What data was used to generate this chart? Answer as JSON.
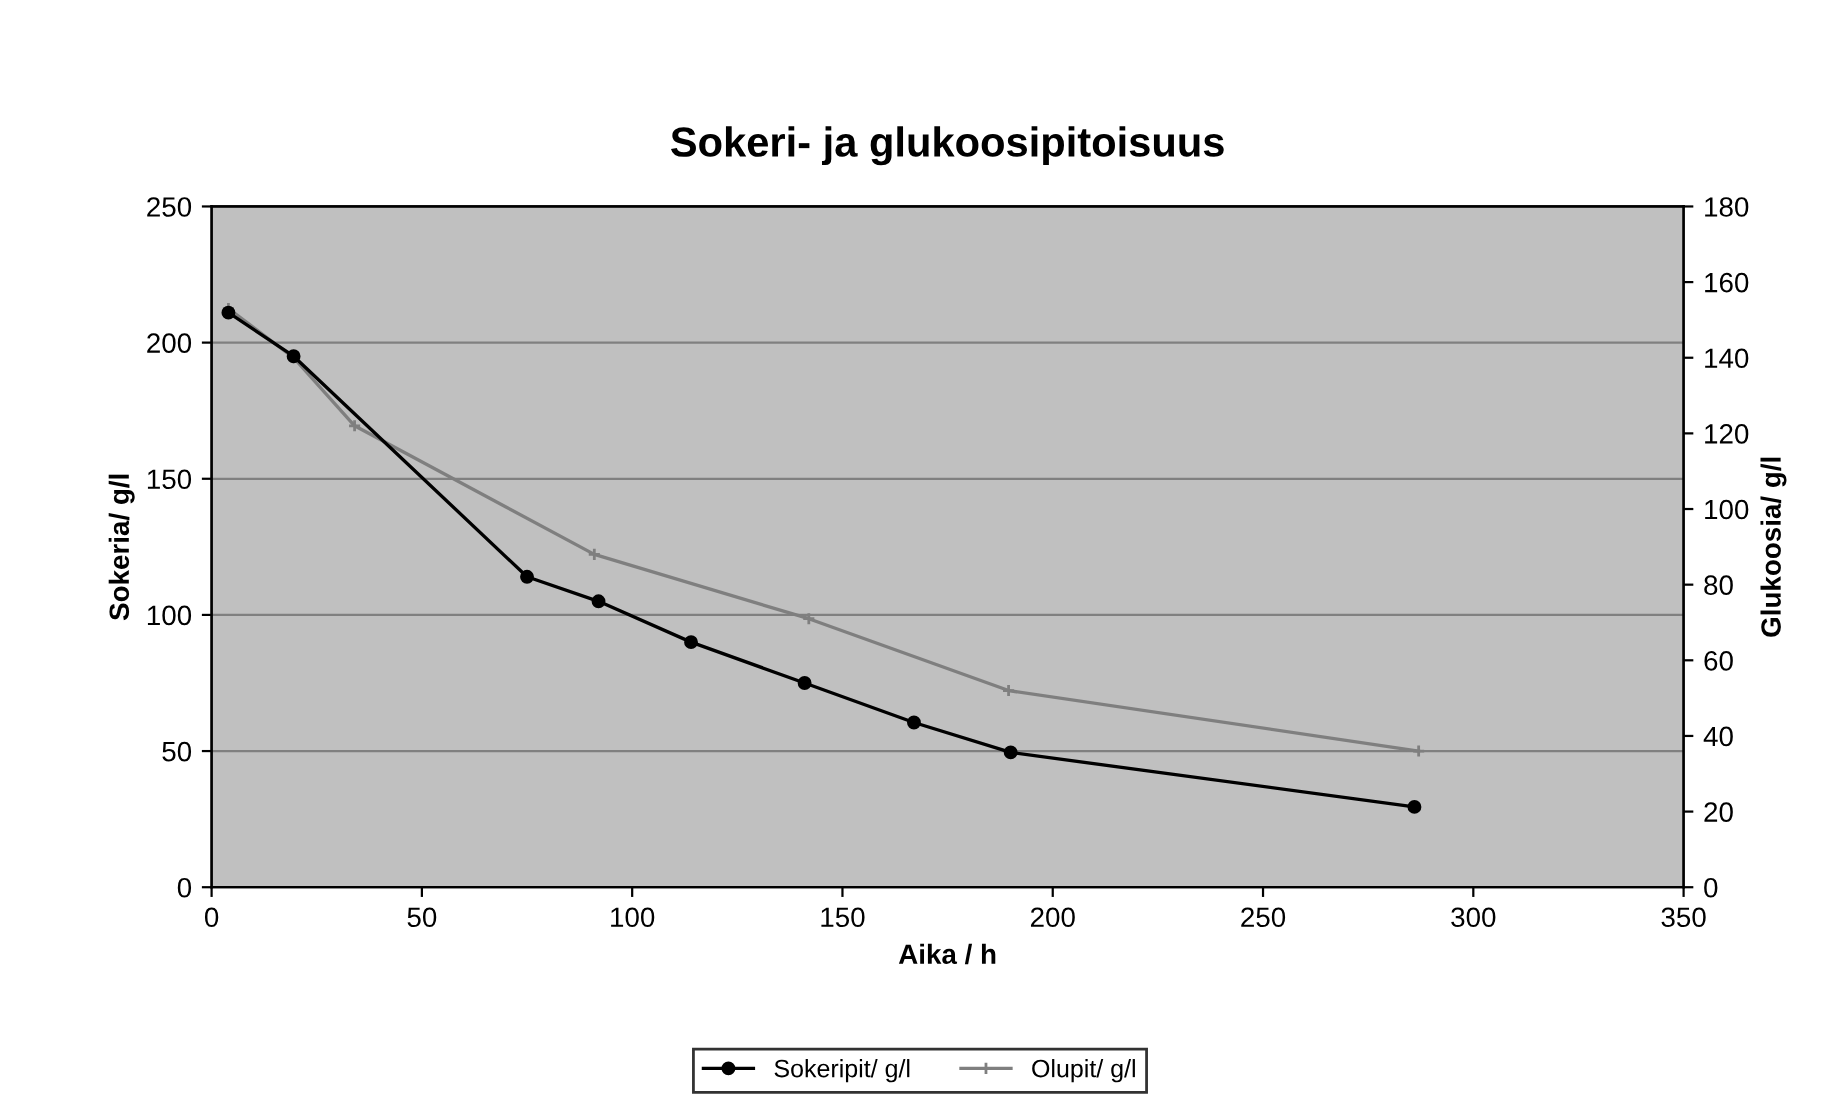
{
  "chart_data": {
    "type": "line",
    "title": "Sokeri- ja glukoosipitoisuus",
    "xlabel": "Aika / h",
    "ylabel": "Sokeria/ g/l",
    "y2label": "Glukoosia/ g/l",
    "series": [
      {
        "name": "Sokeripit/ g/l",
        "color": "#000000",
        "marker": "circle",
        "x": [
          4,
          19.5,
          75,
          92,
          114,
          141,
          167,
          190,
          286
        ],
        "values": [
          211,
          195,
          114,
          105,
          90,
          75,
          60.5,
          49.5,
          29.5
        ]
      },
      {
        "name": "Olupit/ g/l",
        "color": "#7f7f7f",
        "marker": "cross",
        "axis": "y2",
        "x": [
          4,
          19.5,
          34,
          91,
          142,
          189.5,
          287
        ],
        "values": [
          153,
          140,
          122,
          88,
          71,
          52,
          36
        ]
      }
    ],
    "xlim": [
      0,
      350
    ],
    "xticks": [
      0,
      50,
      100,
      150,
      200,
      250,
      300,
      350
    ],
    "ylim": [
      0,
      250
    ],
    "yticks": [
      0,
      50,
      100,
      150,
      200,
      250
    ],
    "y2lim": [
      0,
      180
    ],
    "y2ticks": [
      0,
      20,
      40,
      60,
      80,
      100,
      120,
      140,
      160,
      180
    ],
    "grid": "y",
    "legend": "bottom"
  }
}
